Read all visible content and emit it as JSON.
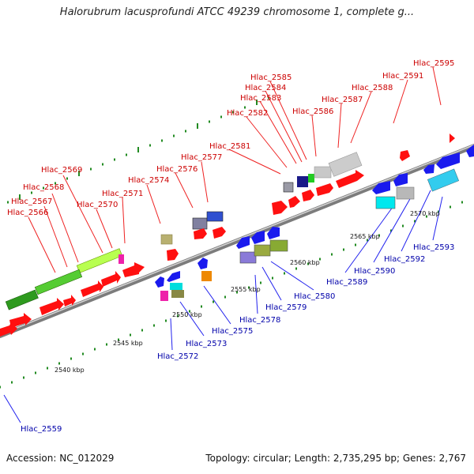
{
  "title": "Halorubrum lacusprofundi ATCC 49239 chromosome 1, complete g...",
  "footer": {
    "accession": "Accession: NC_012029",
    "summary": "Topology: circular; Length: 2,735,295 bp; Genes: 2,767"
  },
  "scale_labels": [
    "2540 kbp",
    "2545 kbp",
    "2550 kbp",
    "2555 kbp",
    "2560 kbp",
    "2565 kbp",
    "2570 kbp"
  ],
  "genes_top": [
    "Hlac_2566",
    "Hlac_2567",
    "Hlac_2568",
    "Hlac_2569",
    "Hlac_2570",
    "Hlac_2571",
    "Hlac_2574",
    "Hlac_2576",
    "Hlac_2577",
    "Hlac_2581",
    "Hlac_2582",
    "Hlac_2583",
    "Hlac_2584",
    "Hlac_2585",
    "Hlac_2586",
    "Hlac_2587",
    "Hlac_2588",
    "Hlac_2591",
    "Hlac_2595"
  ],
  "genes_bottom": [
    "Hlac_2559",
    "Hlac_2572",
    "Hlac_2573",
    "Hlac_2575",
    "Hlac_2578",
    "Hlac_2579",
    "Hlac_2580",
    "Hlac_2589",
    "Hlac_2590",
    "Hlac_2592",
    "Hlac_2593"
  ],
  "colors": {
    "forward": "#ff1010",
    "reverse": "#1a1aee",
    "label_top": "#cc0000",
    "label_bottom": "#0000aa",
    "backbone": "#8a8a8a",
    "ticks": "#228b22"
  }
}
